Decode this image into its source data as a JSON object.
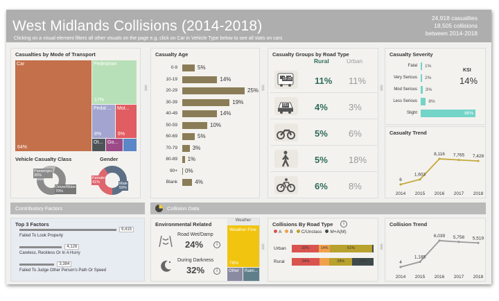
{
  "header": {
    "title": "West Midlands Collisions (2014-2018)",
    "subtitle": "Clicking on a visual element filters all other visuals on the page e.g. click on Car in Vehicle Type below to see all stats on cars",
    "stats": [
      "24,918 casualties",
      "18,505 collisions",
      "between 2014-2018"
    ]
  },
  "transport": {
    "title": "Casualties by Mode of Transport",
    "tiles": [
      {
        "label": "Car",
        "value": "64%",
        "color": "#c4704a"
      },
      {
        "label": "Pedestrian",
        "value": "17%",
        "color": "#b8e0b8"
      },
      {
        "label": "Pedal ...",
        "value": "8%",
        "color": "#a3a5d0"
      },
      {
        "label": "Mot...",
        "value": "6%",
        "color": "#e05d61"
      },
      {
        "label": "Ot...",
        "value": "",
        "color": "#4e5358"
      },
      {
        "label": "Go...",
        "value": "",
        "color": "#9c4a88"
      },
      {
        "label": "",
        "value": "",
        "color": "#5b87c8"
      }
    ]
  },
  "vehicle_class": {
    "title": "Vehicle Casualty Class",
    "slices": [
      {
        "label": "Passenger",
        "value": "30%"
      },
      {
        "label": "Driver/Rider",
        "value": "70%"
      }
    ]
  },
  "gender": {
    "title": "Gender",
    "slices": [
      {
        "label": "Female",
        "value": "41%"
      },
      {
        "label": "Male",
        "value": "59%"
      }
    ]
  },
  "age": {
    "title": "Casualty Age",
    "rows": [
      {
        "label": "0-9",
        "value": "5%",
        "pct": 5
      },
      {
        "label": "10-19",
        "value": "14%",
        "pct": 14
      },
      {
        "label": "20-29",
        "value": "25%",
        "pct": 25
      },
      {
        "label": "30-39",
        "value": "19%",
        "pct": 19
      },
      {
        "label": "40-49",
        "value": "14%",
        "pct": 14
      },
      {
        "label": "50-59",
        "value": "10%",
        "pct": 10
      },
      {
        "label": "60-69",
        "value": "5%",
        "pct": 5
      },
      {
        "label": "70-79",
        "value": "3%",
        "pct": 3
      },
      {
        "label": "80-89",
        "value": "1%",
        "pct": 1
      },
      {
        "label": "90+",
        "value": "0%",
        "pct": 0
      },
      {
        "label": "Blank",
        "value": "4%",
        "pct": 4
      }
    ]
  },
  "road_groups": {
    "title": "Casualty Groups by Road Type",
    "col_rural": "Rural",
    "col_urban": "Urban",
    "rows": [
      {
        "icon": "bus-icon",
        "badge": "16-25",
        "rural": "11%",
        "urban": "11%"
      },
      {
        "icon": "car-icon",
        "badge": "65+",
        "rural": "4%",
        "urban": "3%"
      },
      {
        "icon": "motorbike-icon",
        "badge": "",
        "rural": "5%",
        "urban": "6%"
      },
      {
        "icon": "pedestrian-icon",
        "badge": "",
        "rural": "5%",
        "urban": "18%"
      },
      {
        "icon": "bicycle-icon",
        "badge": "",
        "rural": "6%",
        "urban": "8%"
      }
    ]
  },
  "severity": {
    "title": "Casualty Severity",
    "ksi_label": "KSI",
    "ksi_value": "14%",
    "rows": [
      {
        "label": "Fatal",
        "value": "1%",
        "pct": 1
      },
      {
        "label": "Very Serious",
        "value": "2%",
        "pct": 2
      },
      {
        "label": "Mod Serious",
        "value": "3%",
        "pct": 3
      },
      {
        "label": "Less Serious",
        "value": "8%",
        "pct": 8
      },
      {
        "label": "Slight",
        "value": "86%",
        "pct": 86
      }
    ]
  },
  "casualty_trend": {
    "title": "Casualty Trend",
    "years": [
      "2014",
      "2015",
      "2016",
      "2017",
      "2018"
    ],
    "labels": [
      "6",
      "1,603",
      "8,116",
      "7,765",
      "7,428"
    ],
    "values": [
      6,
      1603,
      8116,
      7765,
      7428
    ]
  },
  "contributory": {
    "band_title": "Contributory Factors",
    "title": "Top 3 Factors",
    "factors": [
      {
        "label": "Failed To Look Properly",
        "value": "9,415",
        "num": 9415
      },
      {
        "label": "Careless, Reckless Or In A Hurry",
        "value": "4,126",
        "num": 4126
      },
      {
        "label": "Failed To Judge Other Person's Path Or Speed",
        "value": "3,384",
        "num": 3384
      }
    ]
  },
  "collision_data": {
    "band_title": "Collision Data"
  },
  "environment": {
    "title": "Environmental Related",
    "items": [
      {
        "label": "Road Wet/Damp",
        "value": "24%"
      },
      {
        "label": "During Darkness",
        "value": "32%"
      }
    ],
    "weather_title": "Weather",
    "weather": [
      {
        "label": "Weather Fine",
        "value": "78%"
      },
      {
        "label": "Other",
        "value": ""
      },
      {
        "label": "Raini...",
        "value": ""
      }
    ]
  },
  "road_type": {
    "title": "Collisions By Road Type",
    "legend": [
      {
        "label": "A",
        "color": "#d9534f"
      },
      {
        "label": "B",
        "color": "#f0a14a"
      },
      {
        "label": "C/Unclass",
        "color": "#b8a12d"
      },
      {
        "label": "M+A(M)",
        "color": "#3e4a4a"
      }
    ],
    "rows": [
      {
        "label": "Urban",
        "segments": [
          "33%",
          "14%",
          "51%",
          ""
        ],
        "pcts": [
          33,
          14,
          51,
          2
        ]
      },
      {
        "label": "Rural",
        "segments": [
          "34%",
          "",
          "28%",
          "26%"
        ],
        "pcts": [
          34,
          12,
          28,
          26
        ]
      }
    ]
  },
  "collision_trend": {
    "title": "Collision Trend",
    "years": [
      "2014",
      "2015",
      "2016",
      "2017",
      "2018"
    ],
    "labels": [
      "4",
      "1,185",
      "6,039",
      "5,758",
      "5,519"
    ],
    "values": [
      4,
      1185,
      6039,
      5758,
      5519
    ]
  },
  "colors": {
    "header": "#aeaeae",
    "age_bar": "#8a7c56",
    "severity_bar": "#73d4c8",
    "trend_line": "#c4a93a",
    "collision_line": "#999999",
    "rural_text": "#2f6b5a"
  }
}
